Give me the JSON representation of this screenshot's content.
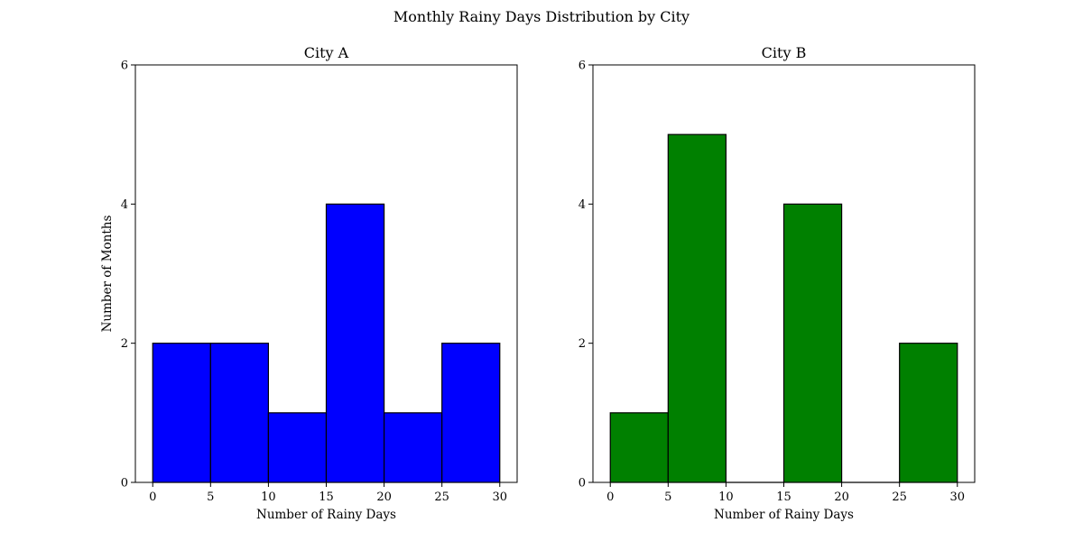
{
  "figure": {
    "title": "Monthly Rainy Days Distribution by City"
  },
  "chart_data": [
    {
      "type": "bar",
      "title": "City A",
      "xlabel": "Number of Rainy Days",
      "ylabel": "Number of Months",
      "bins": [
        [
          0,
          5
        ],
        [
          5,
          10
        ],
        [
          10,
          15
        ],
        [
          15,
          20
        ],
        [
          20,
          25
        ],
        [
          25,
          30
        ]
      ],
      "values": [
        2,
        2,
        1,
        4,
        1,
        2
      ],
      "xlim": [
        -1.5,
        31.5
      ],
      "ylim": [
        0,
        6
      ],
      "xticks": [
        "0",
        "5",
        "10",
        "15",
        "20",
        "25",
        "30"
      ],
      "yticks": [
        "0",
        "2",
        "4",
        "6"
      ],
      "color": "#0000ff",
      "edgecolor": "#000000",
      "grid": false,
      "legend": "none"
    },
    {
      "type": "bar",
      "title": "City B",
      "xlabel": "Number of Rainy Days",
      "ylabel": "",
      "bins": [
        [
          0,
          5
        ],
        [
          5,
          10
        ],
        [
          10,
          15
        ],
        [
          15,
          20
        ],
        [
          20,
          25
        ],
        [
          25,
          30
        ]
      ],
      "values": [
        1,
        5,
        0,
        4,
        0,
        2
      ],
      "xlim": [
        -1.5,
        31.5
      ],
      "ylim": [
        0,
        6
      ],
      "xticks": [
        "0",
        "5",
        "10",
        "15",
        "20",
        "25",
        "30"
      ],
      "yticks": [
        "0",
        "2",
        "4",
        "6"
      ],
      "color": "#008000",
      "edgecolor": "#000000",
      "grid": false,
      "legend": "none"
    }
  ]
}
